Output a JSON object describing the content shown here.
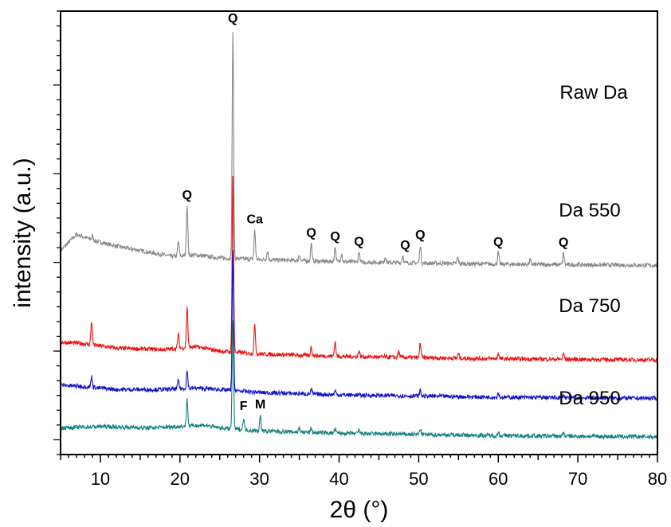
{
  "chart_data": {
    "type": "line",
    "title": "",
    "xlabel": "2θ (°)",
    "ylabel": "intensity (a.u.)",
    "xlim": [
      5,
      80
    ],
    "xticks": [
      10,
      20,
      30,
      40,
      50,
      60,
      70,
      80
    ],
    "yticks_labeled": false,
    "grid": false,
    "legend": "none",
    "series": [
      {
        "name": "Raw Da",
        "color": "#888888",
        "offset": 6.4,
        "baseline": [
          [
            5,
            0.5
          ],
          [
            7,
            1.05
          ],
          [
            9,
            0.85
          ],
          [
            12,
            0.65
          ],
          [
            16,
            0.45
          ],
          [
            19,
            0.3
          ],
          [
            22,
            0.35
          ],
          [
            25,
            0.25
          ],
          [
            30,
            0.2
          ],
          [
            40,
            0.12
          ],
          [
            50,
            0.08
          ],
          [
            60,
            0.04
          ],
          [
            70,
            0.02
          ],
          [
            80,
            0
          ]
        ],
        "peaks": [
          [
            9,
            0.15
          ],
          [
            19.8,
            0.5
          ],
          [
            20.9,
            1.7
          ],
          [
            26.65,
            7.6
          ],
          [
            29.4,
            1.0
          ],
          [
            31,
            0.3
          ],
          [
            35,
            0.2
          ],
          [
            36.5,
            0.6
          ],
          [
            39.5,
            0.5
          ],
          [
            40.3,
            0.3
          ],
          [
            42.5,
            0.35
          ],
          [
            45.8,
            0.2
          ],
          [
            48,
            0.25
          ],
          [
            50.2,
            0.6
          ],
          [
            54.9,
            0.2
          ],
          [
            60,
            0.4
          ],
          [
            64,
            0.15
          ],
          [
            68.2,
            0.4
          ]
        ]
      },
      {
        "name": "Da 550",
        "color": "#ee1111",
        "offset": 3.2,
        "baseline": [
          [
            5,
            0.6
          ],
          [
            8,
            0.55
          ],
          [
            12,
            0.4
          ],
          [
            18,
            0.35
          ],
          [
            22,
            0.45
          ],
          [
            25,
            0.3
          ],
          [
            30,
            0.2
          ],
          [
            40,
            0.12
          ],
          [
            50,
            0.08
          ],
          [
            60,
            0.04
          ],
          [
            80,
            0
          ]
        ],
        "peaks": [
          [
            8.9,
            0.8
          ],
          [
            19.8,
            0.5
          ],
          [
            20.9,
            1.4
          ],
          [
            26.65,
            6.0
          ],
          [
            29.4,
            1.0
          ],
          [
            36.5,
            0.3
          ],
          [
            39.5,
            0.5
          ],
          [
            42.5,
            0.2
          ],
          [
            47.5,
            0.2
          ],
          [
            50.2,
            0.5
          ],
          [
            55,
            0.15
          ],
          [
            60,
            0.2
          ],
          [
            68.2,
            0.2
          ]
        ]
      },
      {
        "name": "Da 750",
        "color": "#1111cc",
        "offset": 1.9,
        "baseline": [
          [
            5,
            0.45
          ],
          [
            8,
            0.4
          ],
          [
            12,
            0.3
          ],
          [
            18,
            0.3
          ],
          [
            22,
            0.35
          ],
          [
            25,
            0.3
          ],
          [
            30,
            0.2
          ],
          [
            40,
            0.12
          ],
          [
            50,
            0.08
          ],
          [
            60,
            0.04
          ],
          [
            80,
            0
          ]
        ],
        "peaks": [
          [
            8.9,
            0.35
          ],
          [
            19.8,
            0.3
          ],
          [
            20.9,
            0.6
          ],
          [
            26.65,
            4.7
          ],
          [
            36.5,
            0.15
          ],
          [
            39.5,
            0.15
          ],
          [
            50.2,
            0.2
          ],
          [
            60,
            0.15
          ],
          [
            68.2,
            0.1
          ]
        ]
      },
      {
        "name": "Da 950",
        "color": "#117f7f",
        "offset": 0.6,
        "baseline": [
          [
            5,
            0.3
          ],
          [
            10,
            0.35
          ],
          [
            16,
            0.3
          ],
          [
            20,
            0.35
          ],
          [
            23,
            0.4
          ],
          [
            25,
            0.3
          ],
          [
            30,
            0.2
          ],
          [
            40,
            0.12
          ],
          [
            50,
            0.08
          ],
          [
            60,
            0.04
          ],
          [
            80,
            0
          ]
        ],
        "peaks": [
          [
            20.9,
            0.9
          ],
          [
            26.65,
            3.7
          ],
          [
            28,
            0.4
          ],
          [
            30.1,
            0.5
          ],
          [
            35,
            0.15
          ],
          [
            36.5,
            0.15
          ],
          [
            39.5,
            0.15
          ],
          [
            42.5,
            0.12
          ],
          [
            50.2,
            0.2
          ],
          [
            60,
            0.12
          ],
          [
            68.2,
            0.12
          ]
        ]
      }
    ],
    "annotations": [
      {
        "text": "Q",
        "x": 26.65,
        "series": "Raw Da"
      },
      {
        "text": "Q",
        "x": 20.9,
        "series": "Raw Da"
      },
      {
        "text": "Ca",
        "x": 29.4,
        "series": "Raw Da"
      },
      {
        "text": "Q",
        "x": 36.5,
        "series": "Raw Da"
      },
      {
        "text": "Q",
        "x": 39.5,
        "series": "Raw Da"
      },
      {
        "text": "Q",
        "x": 42.5,
        "series": "Raw Da"
      },
      {
        "text": "Q",
        "x": 48.3,
        "series": "Raw Da"
      },
      {
        "text": "Q",
        "x": 50.2,
        "series": "Raw Da"
      },
      {
        "text": "Q",
        "x": 60,
        "series": "Raw Da"
      },
      {
        "text": "Q",
        "x": 68.2,
        "series": "Raw Da"
      },
      {
        "text": "F",
        "x": 28,
        "series": "Da 950"
      },
      {
        "text": "M",
        "x": 30.1,
        "series": "Da 950"
      }
    ]
  }
}
